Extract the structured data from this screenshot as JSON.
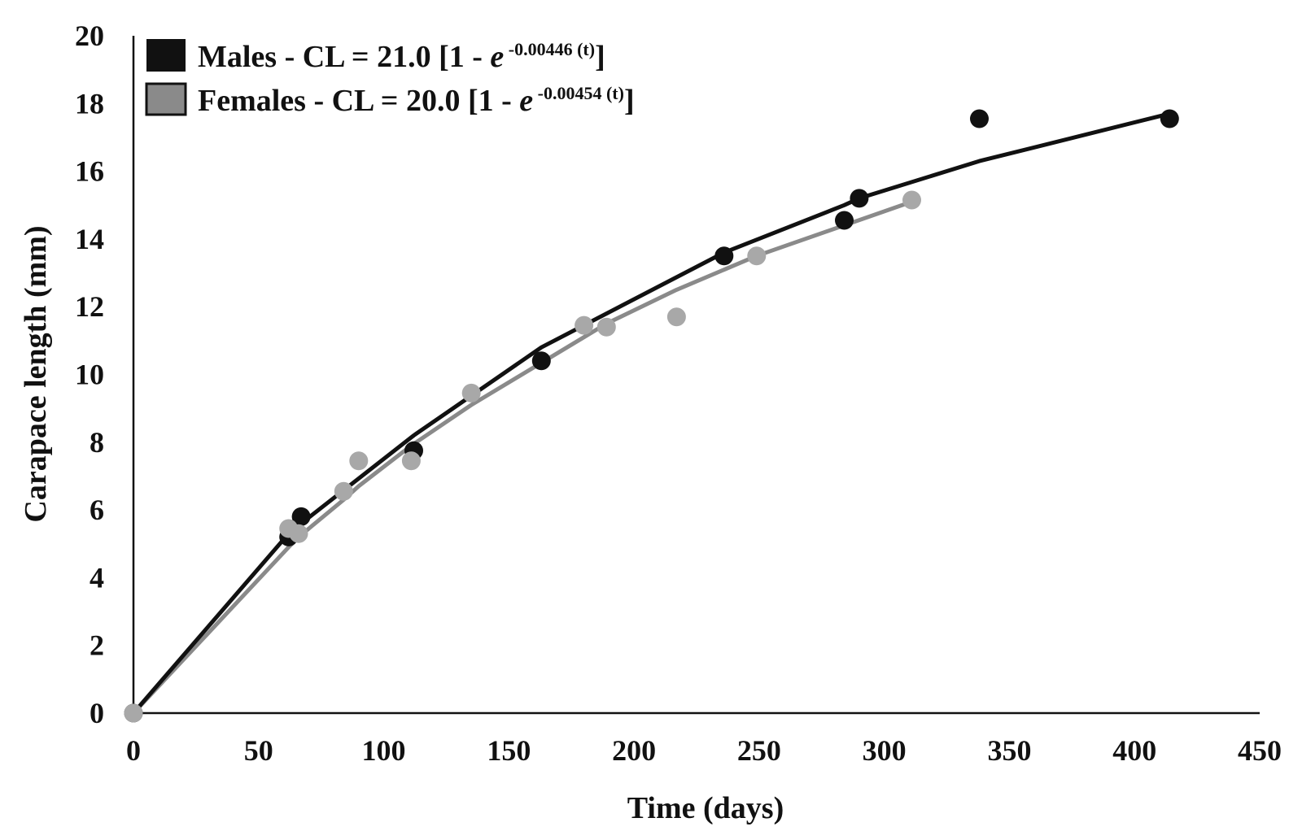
{
  "chart_data": {
    "type": "scatter",
    "title": "",
    "xlabel": "Time (days)",
    "ylabel": "Carapace length (mm)",
    "xlim": [
      0,
      450
    ],
    "ylim": [
      0,
      20
    ],
    "xticks": [
      0,
      50,
      100,
      150,
      200,
      250,
      300,
      350,
      400,
      450
    ],
    "yticks": [
      0,
      2,
      4,
      6,
      8,
      10,
      12,
      14,
      16,
      18,
      20
    ],
    "grid": false,
    "legend_position": "top-left",
    "series": [
      {
        "name": "Males",
        "legend": {
          "prefix": "Males - CL = 21.0 [1 - ",
          "e": "e",
          "exponent": " -0.00446 (t)",
          "suffix": "]"
        },
        "marker_color": "#111111",
        "line_color": "#111111",
        "points": [
          {
            "x": 0,
            "y": 0
          },
          {
            "x": 62,
            "y": 5.2
          },
          {
            "x": 67,
            "y": 5.8
          },
          {
            "x": 112,
            "y": 7.75
          },
          {
            "x": 163,
            "y": 10.4
          },
          {
            "x": 236,
            "y": 13.5
          },
          {
            "x": 284,
            "y": 14.55
          },
          {
            "x": 290,
            "y": 15.2
          },
          {
            "x": 338,
            "y": 17.55
          },
          {
            "x": 414,
            "y": 17.55
          }
        ],
        "fit_x": [
          0,
          62,
          67,
          112,
          163,
          236,
          284,
          290,
          338,
          414
        ],
        "fit_y": [
          0,
          5.3,
          5.6,
          8.2,
          10.8,
          13.6,
          15.0,
          15.2,
          16.3,
          17.7
        ]
      },
      {
        "name": "Females",
        "legend": {
          "prefix": "Females - CL = 20.0 [1 - ",
          "e": "e",
          "exponent": " -0.00454 (t)",
          "suffix": "]"
        },
        "marker_color": "#a8a8a8",
        "line_color": "#8a8a8a",
        "points": [
          {
            "x": 0,
            "y": 0
          },
          {
            "x": 62,
            "y": 5.45
          },
          {
            "x": 66,
            "y": 5.3
          },
          {
            "x": 84,
            "y": 6.55
          },
          {
            "x": 90,
            "y": 7.45
          },
          {
            "x": 111,
            "y": 7.45
          },
          {
            "x": 135,
            "y": 9.45
          },
          {
            "x": 180,
            "y": 11.45
          },
          {
            "x": 189,
            "y": 11.4
          },
          {
            "x": 217,
            "y": 11.7
          },
          {
            "x": 249,
            "y": 13.5
          },
          {
            "x": 311,
            "y": 15.15
          }
        ],
        "fit_x": [
          0,
          62,
          66,
          84,
          90,
          111,
          135,
          180,
          189,
          217,
          249,
          311
        ],
        "fit_y": [
          0,
          4.9,
          5.2,
          6.3,
          6.7,
          7.9,
          9.1,
          11.1,
          11.5,
          12.5,
          13.5,
          15.1
        ]
      }
    ]
  }
}
